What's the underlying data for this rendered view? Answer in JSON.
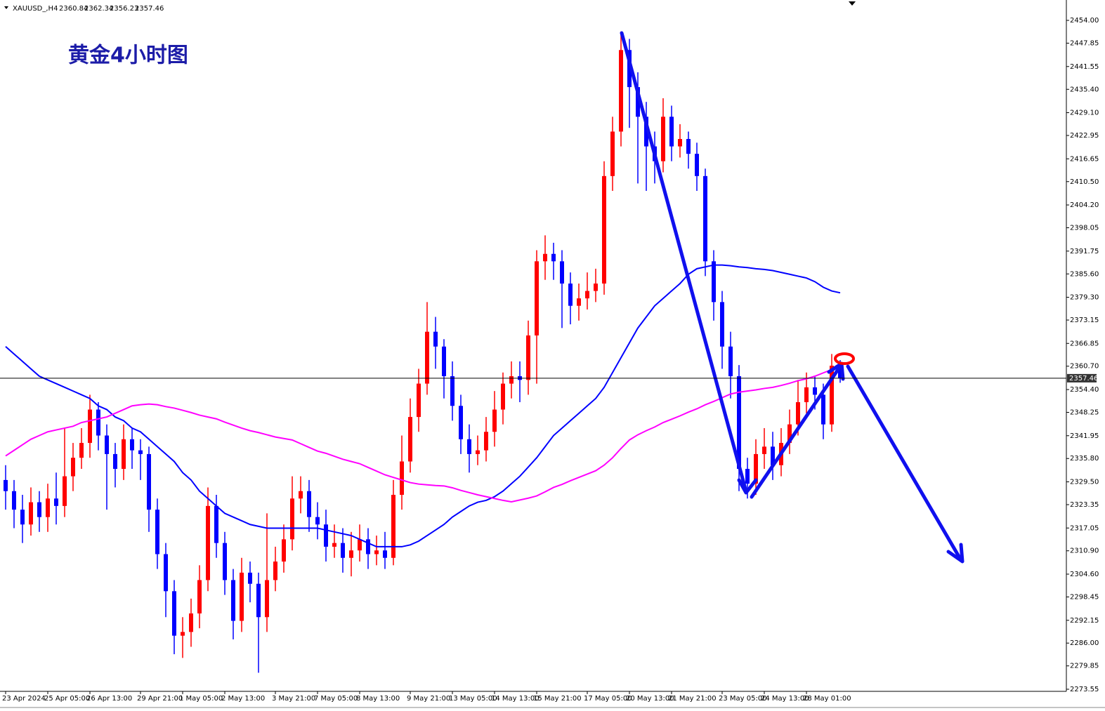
{
  "chart_data": {
    "type": "candlestick",
    "symbol": "XAUUSD_,H4",
    "title": "黄金4小时图",
    "up_color": "#ff0000",
    "down_color": "#0000ff",
    "current_price": 2357.46,
    "ylim": [
      2272.98,
      2458.55
    ],
    "yticks": [
      {
        "value": 2454,
        "label": "2454.00"
      },
      {
        "value": 2447.85,
        "label": "2447.85"
      },
      {
        "value": 2441.55,
        "label": "2441.55"
      },
      {
        "value": 2435.4,
        "label": "2435.40"
      },
      {
        "value": 2429.1,
        "label": "2429.10"
      },
      {
        "value": 2422.95,
        "label": "2422.95"
      },
      {
        "value": 2416.65,
        "label": "2416.65"
      },
      {
        "value": 2410.5,
        "label": "2410.50"
      },
      {
        "value": 2404.2,
        "label": "2404.20"
      },
      {
        "value": 2398.05,
        "label": "2398.05"
      },
      {
        "value": 2391.75,
        "label": "2391.75"
      },
      {
        "value": 2385.6,
        "label": "2385.60"
      },
      {
        "value": 2379.3,
        "label": "2379.30"
      },
      {
        "value": 2373.15,
        "label": "2373.15"
      },
      {
        "value": 2366.85,
        "label": "2366.85"
      },
      {
        "value": 2360.7,
        "label": "2360.70"
      },
      {
        "value": 2354.4,
        "label": "2354.40"
      },
      {
        "value": 2348.25,
        "label": "2348.25"
      },
      {
        "value": 2341.95,
        "label": "2341.95"
      },
      {
        "value": 2335.8,
        "label": "2335.80"
      },
      {
        "value": 2329.5,
        "label": "2329.50"
      },
      {
        "value": 2323.35,
        "label": "2323.35"
      },
      {
        "value": 2317.05,
        "label": "2317.05"
      },
      {
        "value": 2310.9,
        "label": "2310.90"
      },
      {
        "value": 2304.6,
        "label": "2304.60"
      },
      {
        "value": 2298.45,
        "label": "2298.45"
      },
      {
        "value": 2292.15,
        "label": "2292.15"
      },
      {
        "value": 2286,
        "label": "2286.00"
      },
      {
        "value": 2279.85,
        "label": "2279.85"
      },
      {
        "value": 2273.55,
        "label": "2273.55"
      }
    ],
    "categories": [
      "23 Apr 2024",
      null,
      null,
      null,
      null,
      "25 Apr 05:00",
      null,
      null,
      null,
      null,
      "26 Apr 13:00",
      null,
      null,
      null,
      null,
      null,
      "29 Apr 21:00",
      null,
      null,
      null,
      null,
      "1 May 05:00",
      null,
      null,
      null,
      null,
      "2 May 13:00",
      null,
      null,
      null,
      null,
      null,
      "3 May 21:00",
      null,
      null,
      null,
      null,
      "7 May 05:00",
      null,
      null,
      null,
      null,
      "8 May 13:00",
      null,
      null,
      null,
      null,
      null,
      "9 May 21:00",
      null,
      null,
      null,
      null,
      "13 May 05:00",
      null,
      null,
      null,
      null,
      "14 May 13:00",
      null,
      null,
      null,
      null,
      "15 May 21:00",
      null,
      null,
      null,
      null,
      null,
      "17 May 05:00",
      null,
      null,
      null,
      null,
      "20 May 13:00",
      null,
      null,
      null,
      null,
      "21 May 21:00",
      null,
      null,
      null,
      null,
      null,
      "23 May 05:00",
      null,
      null,
      null,
      null,
      "24 May 13:00",
      null,
      null,
      null,
      null,
      "28 May 01:00",
      null,
      null,
      null,
      null
    ],
    "open": [
      2330,
      2327,
      2322,
      2318,
      2324,
      2320,
      2325,
      2323,
      2331,
      2336,
      2340,
      2349,
      2342,
      2337,
      2333,
      2341,
      2338,
      2337,
      2322,
      2310,
      2300,
      2288,
      2289,
      2294,
      2303,
      2323,
      2313,
      2303,
      2292,
      2305,
      2302,
      2293,
      2303,
      2308,
      2314,
      2325,
      2327,
      2320,
      2318,
      2312,
      2313,
      2309,
      2311,
      2314,
      2310,
      2311,
      2309,
      2326,
      2335,
      2347,
      2356,
      2370,
      2366,
      2358,
      2350,
      2341,
      2337,
      2338,
      2343,
      2349,
      2356,
      2358,
      2357,
      2369,
      2389,
      2391,
      2389,
      2383,
      2377,
      2379,
      2381,
      2383,
      2412,
      2424,
      2446,
      2436,
      2428,
      2420,
      2416,
      2428,
      2420,
      2422,
      2418,
      2412,
      2389,
      2378,
      2366,
      2358,
      2333,
      2329,
      2337,
      2339,
      2334,
      2340,
      2345,
      2351,
      2355,
      2353,
      2345,
      2360.84
    ],
    "high": [
      2334,
      2330,
      2326,
      2328,
      2327,
      2329,
      2332,
      2344,
      2340,
      2344,
      2353,
      2351,
      2345,
      2340,
      2345,
      2344,
      2341,
      2339,
      2325,
      2313,
      2303,
      2293,
      2298,
      2307,
      2328,
      2326,
      2316,
      2306,
      2309,
      2308,
      2305,
      2321,
      2312,
      2318,
      2331,
      2331,
      2330,
      2324,
      2322,
      2318,
      2317,
      2316,
      2318,
      2317,
      2315,
      2316,
      2330,
      2342,
      2352,
      2360,
      2378,
      2374,
      2368,
      2362,
      2353,
      2345,
      2342,
      2347,
      2354,
      2359,
      2362,
      2362,
      2373,
      2392,
      2396,
      2394,
      2392,
      2386,
      2383,
      2386,
      2387,
      2416,
      2428,
      2451,
      2449,
      2440,
      2432,
      2424,
      2433,
      2431,
      2426,
      2424,
      2421,
      2414,
      2392,
      2381,
      2370,
      2361,
      2336,
      2341,
      2344,
      2343,
      2344,
      2349,
      2357,
      2359,
      2358,
      2356,
      2364,
      2362.34
    ],
    "low": [
      2322,
      2317,
      2313,
      2315,
      2316,
      2316,
      2318,
      2320,
      2327,
      2333,
      2336,
      2338,
      2322,
      2328,
      2330,
      2333,
      2330,
      2316,
      2306,
      2293,
      2283,
      2282,
      2285,
      2290,
      2300,
      2309,
      2299,
      2287,
      2289,
      2297,
      2278,
      2289,
      2300,
      2305,
      2311,
      2321,
      2316,
      2314,
      2308,
      2309,
      2305,
      2304,
      2308,
      2306,
      2307,
      2306,
      2307,
      2322,
      2332,
      2343,
      2353,
      2360,
      2352,
      2346,
      2337,
      2332,
      2334,
      2335,
      2339,
      2345,
      2352,
      2351,
      2353,
      2356,
      2384,
      2384,
      2371,
      2372,
      2373,
      2376,
      2378,
      2380,
      2408,
      2420,
      2425,
      2410,
      2408,
      2410,
      2413,
      2416,
      2417,
      2414,
      2408,
      2385,
      2373,
      2360,
      2352,
      2327,
      2325,
      2326,
      2333,
      2330,
      2331,
      2337,
      2342,
      2348,
      2349,
      2341,
      2343,
      2356.23
    ],
    "close": [
      2327,
      2322,
      2318,
      2324,
      2320,
      2325,
      2323,
      2331,
      2336,
      2340,
      2349,
      2342,
      2337,
      2333,
      2341,
      2338,
      2337,
      2322,
      2310,
      2300,
      2288,
      2289,
      2294,
      2303,
      2323,
      2313,
      2303,
      2292,
      2305,
      2302,
      2293,
      2303,
      2308,
      2314,
      2325,
      2327,
      2320,
      2318,
      2312,
      2313,
      2309,
      2311,
      2314,
      2310,
      2311,
      2309,
      2326,
      2335,
      2347,
      2356,
      2370,
      2366,
      2358,
      2350,
      2341,
      2337,
      2338,
      2343,
      2349,
      2356,
      2358,
      2357,
      2369,
      2389,
      2391,
      2389,
      2383,
      2377,
      2379,
      2381,
      2383,
      2412,
      2424,
      2446,
      2436,
      2428,
      2420,
      2416,
      2428,
      2420,
      2422,
      2418,
      2412,
      2389,
      2378,
      2366,
      2358,
      2333,
      2329,
      2337,
      2339,
      2334,
      2340,
      2345,
      2351,
      2355,
      2353,
      2345,
      2360.84,
      2357.46
    ],
    "ma": [
      {
        "color": "#0000ff",
        "values": [
          2366,
          2364,
          2362,
          2360,
          2358,
          2357,
          2356,
          2355,
          2354,
          2353,
          2352,
          2350,
          2349,
          2347,
          2346,
          2344,
          2343,
          2341,
          2339,
          2337,
          2335,
          2332,
          2330,
          2327,
          2325,
          2323,
          2321,
          2320,
          2319,
          2318,
          2317.5,
          2317,
          2317,
          2317,
          2317,
          2317,
          2317,
          2317,
          2316.5,
          2316,
          2315.5,
          2315,
          2314,
          2313,
          2312,
          2312,
          2312,
          2312,
          2312.5,
          2313.5,
          2315,
          2316.5,
          2318,
          2320,
          2321.5,
          2323,
          2324,
          2324.5,
          2325.5,
          2327,
          2329,
          2331,
          2333.5,
          2336,
          2339,
          2342,
          2344,
          2346,
          2348,
          2350,
          2352,
          2355,
          2359,
          2363,
          2367,
          2371,
          2374,
          2377,
          2379,
          2381,
          2383,
          2385.5,
          2387,
          2387.5,
          2388,
          2388,
          2387.8,
          2387.5,
          2387.3,
          2387,
          2386.8,
          2386.5,
          2386,
          2385.5,
          2385,
          2384.5,
          2383.5,
          2382,
          2381,
          2380.5
        ]
      },
      {
        "color": "#ff00ff",
        "values": [
          2336.5,
          2338,
          2339.5,
          2341,
          2342,
          2343,
          2343.5,
          2344,
          2344.5,
          2345.5,
          2346,
          2346.5,
          2347,
          2348,
          2349,
          2350,
          2350.3,
          2350.5,
          2350.3,
          2349.8,
          2349.4,
          2348.8,
          2348.2,
          2347.5,
          2347,
          2346.5,
          2345.6,
          2344.8,
          2344,
          2343.3,
          2342.8,
          2342.2,
          2341.6,
          2341.2,
          2340.8,
          2339.8,
          2338.8,
          2337.8,
          2337.2,
          2336.4,
          2335.6,
          2335,
          2334.4,
          2333.4,
          2332.4,
          2331.4,
          2330.7,
          2330,
          2329.3,
          2328.9,
          2328.7,
          2328.5,
          2328.4,
          2327.9,
          2327.2,
          2326.6,
          2326,
          2325.5,
          2325,
          2324.5,
          2324.1,
          2324.6,
          2325.1,
          2325.7,
          2326.8,
          2328,
          2328.8,
          2329.8,
          2330.7,
          2331.6,
          2332.5,
          2334,
          2336,
          2338.5,
          2340.8,
          2342.2,
          2343.3,
          2344.3,
          2345.5,
          2346.4,
          2347.3,
          2348.3,
          2349.2,
          2350.3,
          2351.2,
          2352.2,
          2353.2,
          2353.7,
          2354,
          2354.3,
          2354.7,
          2355,
          2355.5,
          2356.1,
          2356.8,
          2357.3,
          2358,
          2358.9,
          2359.8,
          2360.7
        ]
      }
    ]
  }
}
